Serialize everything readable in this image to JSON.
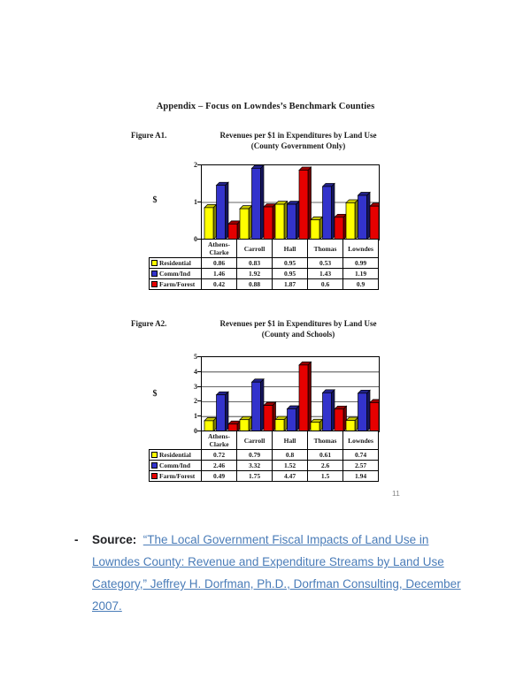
{
  "page": {
    "heading": "Appendix – Focus on Lowndes’s Benchmark Counties",
    "page_number": "11"
  },
  "figures": [
    {
      "label": "Figure A1.",
      "title_line1": "Revenues per $1 in Expenditures by Land Use",
      "title_line2": "(County Government Only)"
    },
    {
      "label": "Figure A2.",
      "title_line1": "Revenues per $1 in Expenditures by Land Use",
      "title_line2": "(County and Schools)"
    }
  ],
  "chart_data": [
    {
      "type": "bar",
      "title": "Revenues per $1 in Expenditures by Land Use (County Government Only)",
      "xlabel": "",
      "ylabel": "$",
      "ylim": [
        0,
        2
      ],
      "yticks": [
        0,
        1,
        2
      ],
      "grid": true,
      "legend_position": "table-left",
      "style": "3d-clustered-column",
      "categories": [
        "Athens-Clarke",
        "Carroll",
        "Hall",
        "Thomas",
        "Lowndes"
      ],
      "categories_display": [
        "Athens-\nClarke",
        "Carroll",
        "Hall",
        "Thomas",
        "Lowndes"
      ],
      "series": [
        {
          "name": "Residential",
          "values": [
            0.86,
            0.83,
            0.95,
            0.53,
            0.99
          ],
          "color": "#ffff00",
          "side_color": "#7f7f00",
          "top_color": "#c8c800"
        },
        {
          "name": "Comm/Ind",
          "values": [
            1.46,
            1.92,
            0.95,
            1.43,
            1.19
          ],
          "color": "#3333cc",
          "side_color": "#15155c",
          "top_color": "#22228a"
        },
        {
          "name": "Farm/Forest",
          "values": [
            0.42,
            0.88,
            1.87,
            0.6,
            0.9
          ],
          "color": "#e60000",
          "side_color": "#6e0000",
          "top_color": "#9a0000"
        }
      ]
    },
    {
      "type": "bar",
      "title": "Revenues per $1 in Expenditures by Land Use (County and Schools)",
      "xlabel": "",
      "ylabel": "$",
      "ylim": [
        0,
        5
      ],
      "yticks": [
        0,
        1,
        2,
        3,
        4,
        5
      ],
      "grid": true,
      "legend_position": "table-left",
      "style": "3d-clustered-column",
      "categories": [
        "Athens-Clarke",
        "Carroll",
        "Hall",
        "Thomas",
        "Lowndes"
      ],
      "categories_display": [
        "Athens-\nClarke",
        "Carroll",
        "Hall",
        "Thomas",
        "Lowndes"
      ],
      "series": [
        {
          "name": "Residential",
          "values": [
            0.72,
            0.79,
            0.8,
            0.61,
            0.74
          ],
          "color": "#ffff00",
          "side_color": "#7f7f00",
          "top_color": "#c8c800"
        },
        {
          "name": "Comm/Ind",
          "values": [
            2.46,
            3.32,
            1.52,
            2.6,
            2.57
          ],
          "color": "#3333cc",
          "side_color": "#15155c",
          "top_color": "#22228a"
        },
        {
          "name": "Farm/Forest",
          "values": [
            0.49,
            1.75,
            4.47,
            1.5,
            1.94
          ],
          "color": "#e60000",
          "side_color": "#6e0000",
          "top_color": "#9a0000"
        }
      ]
    }
  ],
  "source": {
    "bullet": "-",
    "label": "Source:",
    "link_text": "“The Local Government Fiscal Impacts of Land Use in Lowndes County: Revenue and Expenditure Streams by Land Use Category,” Jeffrey H. Dorfman, Ph.D., Dorfman Consulting, December 2007.",
    "link_color": "#4a7cb8"
  }
}
